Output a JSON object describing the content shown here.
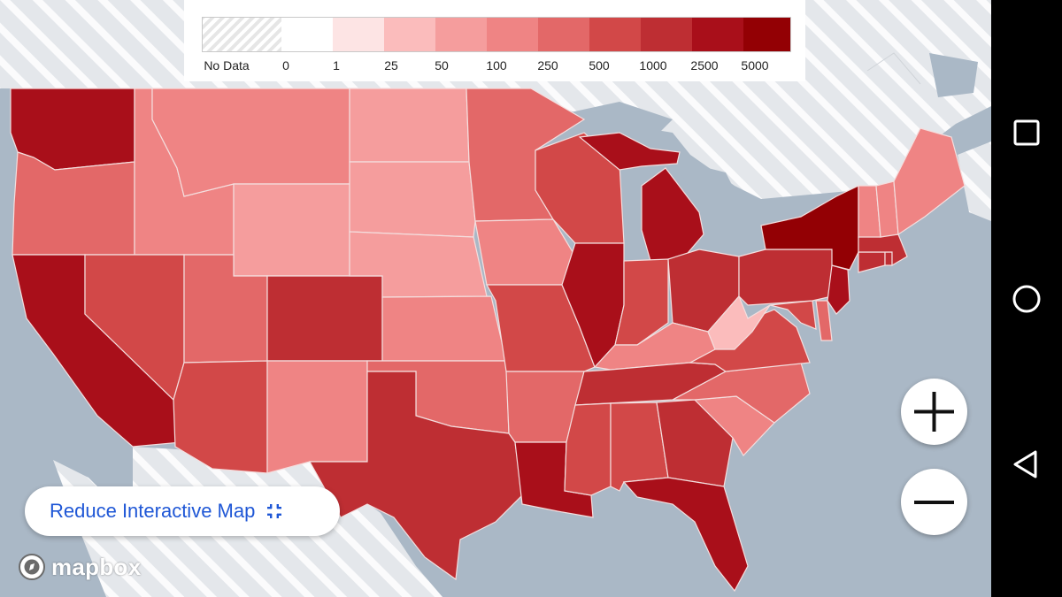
{
  "legend": {
    "items": [
      {
        "label": "No Data",
        "color": "none"
      },
      {
        "label": "0",
        "color": "#ffffff"
      },
      {
        "label": "1",
        "color": "#fde4e4"
      },
      {
        "label": "25",
        "color": "#fbbcbc"
      },
      {
        "label": "50",
        "color": "#f59d9d"
      },
      {
        "label": "100",
        "color": "#ef8484"
      },
      {
        "label": "250",
        "color": "#e36868"
      },
      {
        "label": "500",
        "color": "#d24848"
      },
      {
        "label": "1000",
        "color": "#be2e33"
      },
      {
        "label": "2500",
        "color": "#a90f1a"
      },
      {
        "label": "5000",
        "color": "#930004"
      }
    ]
  },
  "controls": {
    "reduce_label": "Reduce Interactive Map",
    "zoom_in_icon": "plus-icon",
    "zoom_out_icon": "minus-icon"
  },
  "attribution": {
    "brand": "mapbox"
  },
  "navigation": {
    "recents_icon": "square-icon",
    "home_icon": "circle-icon",
    "back_icon": "triangle-back-icon"
  },
  "colors": {
    "water": "#aab8c6",
    "no_data_land": "#e3e6ea",
    "accent_blue": "#1f57d6"
  }
}
